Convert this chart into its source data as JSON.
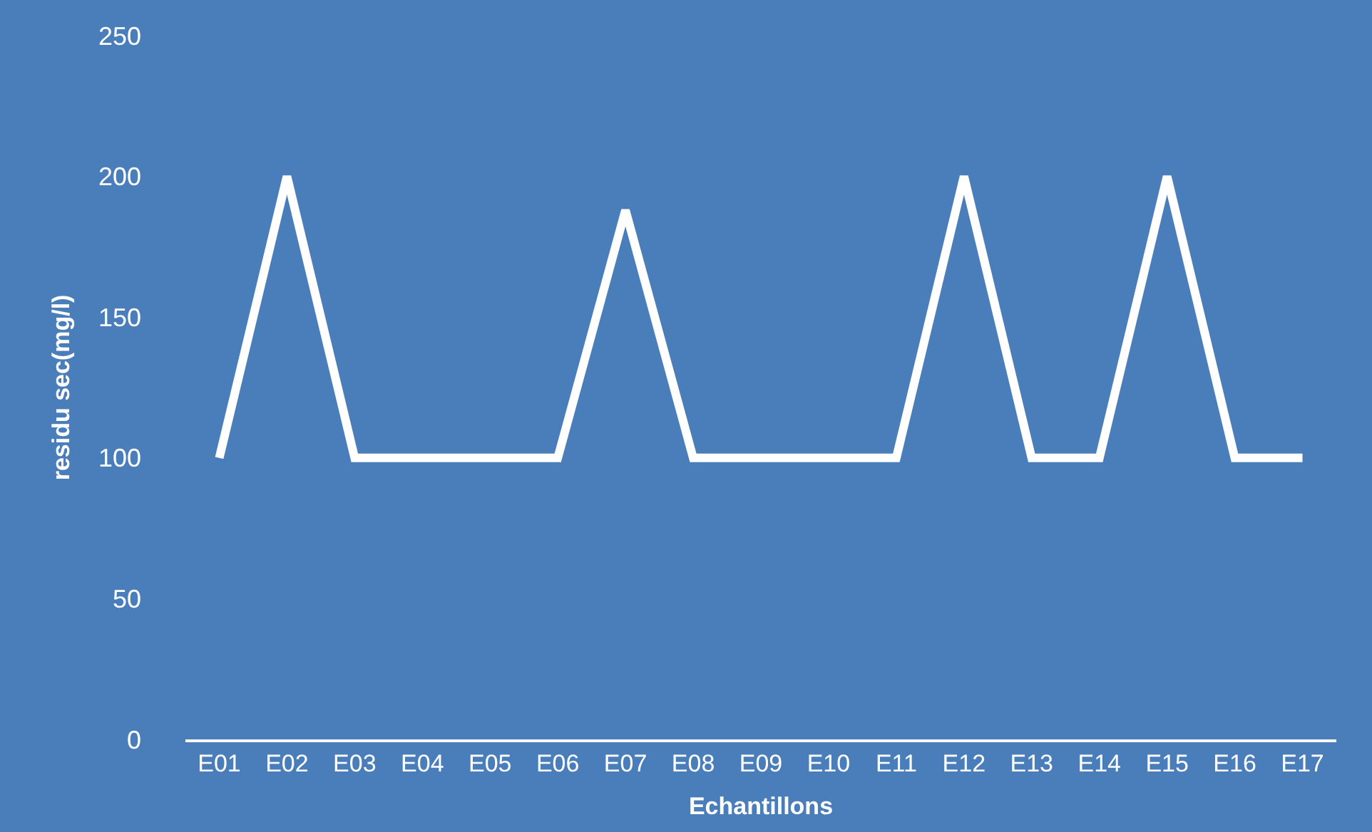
{
  "chart_data": {
    "type": "line",
    "xlabel": "Echantillons",
    "ylabel": "residu sec(mg/l)",
    "categories": [
      "E01",
      "E02",
      "E03",
      "E04",
      "E05",
      "E06",
      "E07",
      "E08",
      "E09",
      "E10",
      "E11",
      "E12",
      "E13",
      "E14",
      "E15",
      "E16",
      "E17"
    ],
    "series": [
      {
        "color": "#ffffff",
        "values": [
          100,
          200,
          100,
          100,
          100,
          100,
          188,
          100,
          100,
          100,
          100,
          200,
          100,
          100,
          200,
          100,
          100
        ]
      }
    ],
    "ylim": [
      0,
      250
    ],
    "yticks": [
      0,
      50,
      100,
      150,
      200,
      250
    ],
    "marker": "none",
    "line_style": "solid"
  }
}
